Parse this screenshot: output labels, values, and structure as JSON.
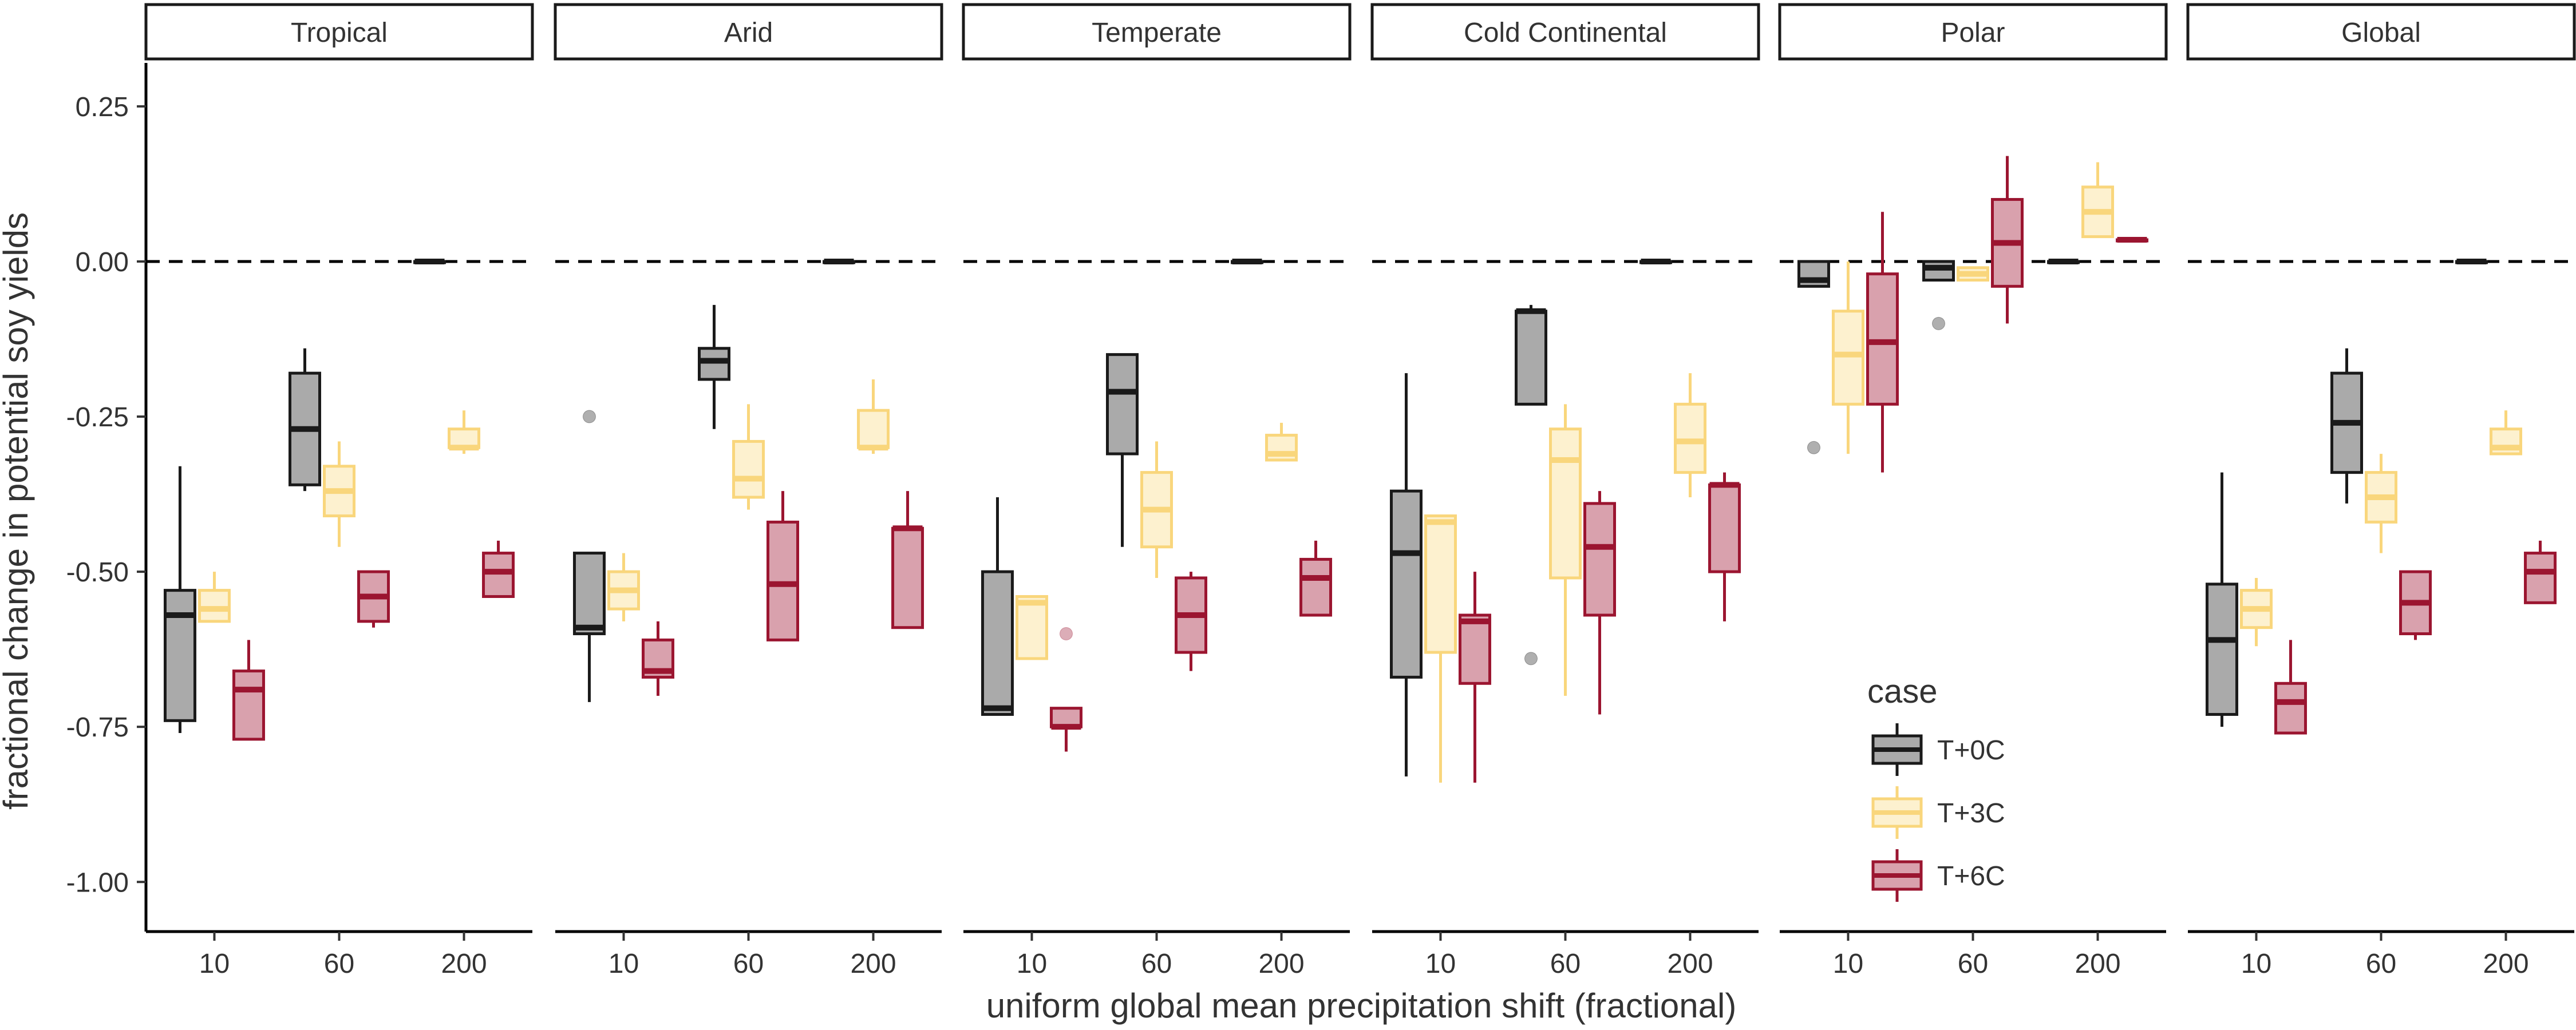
{
  "chart_data": {
    "type": "boxplot",
    "facets": [
      "Tropical",
      "Arid",
      "Temperate",
      "Cold Continental",
      "Polar",
      "Global"
    ],
    "categories": [
      "10",
      "60",
      "200"
    ],
    "xlabel": "uniform global mean precipitation shift (fractional)",
    "ylabel": "fractional change in potential soy yields",
    "ylim": [
      -1.08,
      0.32
    ],
    "yticks": [
      0.25,
      0,
      -0.25,
      -0.5,
      -0.75,
      -1
    ],
    "ytick_labels": [
      "0.25",
      "0.00",
      "-0.25",
      "-0.50",
      "-0.75",
      "-1.00"
    ],
    "reference_line": 0,
    "legend": {
      "title": "case",
      "position": "inside-bottom-right",
      "entries": [
        "T+0C",
        "T+3C",
        "T+6C"
      ]
    },
    "series": [
      {
        "name": "T+0C",
        "stroke": "#1a1a1a",
        "fill": "#aaaaaa",
        "fill_opacity": 1.0
      },
      {
        "name": "T+3C",
        "stroke": "#f9d67c",
        "fill": "#fdf1cf",
        "fill_opacity": 1.0
      },
      {
        "name": "T+6C",
        "stroke": "#9b1530",
        "fill": "#d9a1ad",
        "fill_opacity": 1.0
      }
    ],
    "boxes": [
      {
        "facet": "Tropical",
        "category": "10",
        "series": "T+0C",
        "min": -0.76,
        "q1": -0.74,
        "median": -0.57,
        "q3": -0.53,
        "max": -0.33,
        "outliers": []
      },
      {
        "facet": "Tropical",
        "category": "10",
        "series": "T+3C",
        "min": -0.58,
        "q1": -0.58,
        "median": -0.56,
        "q3": -0.53,
        "max": -0.5,
        "outliers": []
      },
      {
        "facet": "Tropical",
        "category": "10",
        "series": "T+6C",
        "min": -0.77,
        "q1": -0.77,
        "median": -0.69,
        "q3": -0.66,
        "max": -0.61,
        "outliers": []
      },
      {
        "facet": "Tropical",
        "category": "60",
        "series": "T+0C",
        "min": -0.37,
        "q1": -0.36,
        "median": -0.27,
        "q3": -0.18,
        "max": -0.14,
        "outliers": []
      },
      {
        "facet": "Tropical",
        "category": "60",
        "series": "T+3C",
        "min": -0.46,
        "q1": -0.41,
        "median": -0.37,
        "q3": -0.33,
        "max": -0.29,
        "outliers": []
      },
      {
        "facet": "Tropical",
        "category": "60",
        "series": "T+6C",
        "min": -0.59,
        "q1": -0.58,
        "median": -0.54,
        "q3": -0.5,
        "max": -0.5,
        "outliers": []
      },
      {
        "facet": "Tropical",
        "category": "200",
        "series": "T+0C",
        "min": 0,
        "q1": 0,
        "median": 0,
        "q3": 0,
        "max": 0,
        "outliers": []
      },
      {
        "facet": "Tropical",
        "category": "200",
        "series": "T+3C",
        "min": -0.31,
        "q1": -0.3,
        "median": -0.3,
        "q3": -0.27,
        "max": -0.24,
        "outliers": []
      },
      {
        "facet": "Tropical",
        "category": "200",
        "series": "T+6C",
        "min": -0.54,
        "q1": -0.54,
        "median": -0.5,
        "q3": -0.47,
        "max": -0.45,
        "outliers": []
      },
      {
        "facet": "Arid",
        "category": "10",
        "series": "T+0C",
        "min": -0.71,
        "q1": -0.6,
        "median": -0.59,
        "q3": -0.47,
        "max": -0.47,
        "outliers": [
          -0.25
        ]
      },
      {
        "facet": "Arid",
        "category": "10",
        "series": "T+3C",
        "min": -0.58,
        "q1": -0.56,
        "median": -0.53,
        "q3": -0.5,
        "max": -0.47,
        "outliers": []
      },
      {
        "facet": "Arid",
        "category": "10",
        "series": "T+6C",
        "min": -0.7,
        "q1": -0.67,
        "median": -0.66,
        "q3": -0.61,
        "max": -0.58,
        "outliers": []
      },
      {
        "facet": "Arid",
        "category": "60",
        "series": "T+0C",
        "min": -0.27,
        "q1": -0.19,
        "median": -0.16,
        "q3": -0.14,
        "max": -0.07,
        "outliers": []
      },
      {
        "facet": "Arid",
        "category": "60",
        "series": "T+3C",
        "min": -0.4,
        "q1": -0.38,
        "median": -0.35,
        "q3": -0.29,
        "max": -0.23,
        "outliers": []
      },
      {
        "facet": "Arid",
        "category": "60",
        "series": "T+6C",
        "min": -0.61,
        "q1": -0.61,
        "median": -0.52,
        "q3": -0.42,
        "max": -0.37,
        "outliers": []
      },
      {
        "facet": "Arid",
        "category": "200",
        "series": "T+0C",
        "min": 0,
        "q1": 0,
        "median": 0,
        "q3": 0,
        "max": 0,
        "outliers": []
      },
      {
        "facet": "Arid",
        "category": "200",
        "series": "T+3C",
        "min": -0.31,
        "q1": -0.3,
        "median": -0.3,
        "q3": -0.24,
        "max": -0.19,
        "outliers": []
      },
      {
        "facet": "Arid",
        "category": "200",
        "series": "T+6C",
        "min": -0.59,
        "q1": -0.59,
        "median": -0.43,
        "q3": -0.43,
        "max": -0.37,
        "outliers": []
      },
      {
        "facet": "Temperate",
        "category": "10",
        "series": "T+0C",
        "min": -0.73,
        "q1": -0.73,
        "median": -0.72,
        "q3": -0.5,
        "max": -0.38,
        "outliers": []
      },
      {
        "facet": "Temperate",
        "category": "10",
        "series": "T+3C",
        "min": -0.64,
        "q1": -0.64,
        "median": -0.55,
        "q3": -0.54,
        "max": -0.54,
        "outliers": []
      },
      {
        "facet": "Temperate",
        "category": "10",
        "series": "T+6C",
        "min": -0.79,
        "q1": -0.75,
        "median": -0.75,
        "q3": -0.72,
        "max": -0.72,
        "outliers": [
          -0.6
        ]
      },
      {
        "facet": "Temperate",
        "category": "60",
        "series": "T+0C",
        "min": -0.46,
        "q1": -0.31,
        "median": -0.21,
        "q3": -0.15,
        "max": -0.15,
        "outliers": []
      },
      {
        "facet": "Temperate",
        "category": "60",
        "series": "T+3C",
        "min": -0.51,
        "q1": -0.46,
        "median": -0.4,
        "q3": -0.34,
        "max": -0.29,
        "outliers": []
      },
      {
        "facet": "Temperate",
        "category": "60",
        "series": "T+6C",
        "min": -0.66,
        "q1": -0.63,
        "median": -0.57,
        "q3": -0.51,
        "max": -0.5,
        "outliers": []
      },
      {
        "facet": "Temperate",
        "category": "200",
        "series": "T+0C",
        "min": 0,
        "q1": 0,
        "median": 0,
        "q3": 0,
        "max": 0,
        "outliers": []
      },
      {
        "facet": "Temperate",
        "category": "200",
        "series": "T+3C",
        "min": -0.32,
        "q1": -0.32,
        "median": -0.31,
        "q3": -0.28,
        "max": -0.26,
        "outliers": []
      },
      {
        "facet": "Temperate",
        "category": "200",
        "series": "T+6C",
        "min": -0.57,
        "q1": -0.57,
        "median": -0.51,
        "q3": -0.48,
        "max": -0.45,
        "outliers": []
      },
      {
        "facet": "Cold Continental",
        "category": "10",
        "series": "T+0C",
        "min": -0.83,
        "q1": -0.67,
        "median": -0.47,
        "q3": -0.37,
        "max": -0.18,
        "outliers": []
      },
      {
        "facet": "Cold Continental",
        "category": "10",
        "series": "T+3C",
        "min": -0.84,
        "q1": -0.63,
        "median": -0.42,
        "q3": -0.41,
        "max": -0.41,
        "outliers": []
      },
      {
        "facet": "Cold Continental",
        "category": "10",
        "series": "T+6C",
        "min": -0.84,
        "q1": -0.68,
        "median": -0.58,
        "q3": -0.57,
        "max": -0.5,
        "outliers": []
      },
      {
        "facet": "Cold Continental",
        "category": "60",
        "series": "T+0C",
        "min": -0.23,
        "q1": -0.23,
        "median": -0.08,
        "q3": -0.08,
        "max": -0.07,
        "outliers": [
          -0.64
        ]
      },
      {
        "facet": "Cold Continental",
        "category": "60",
        "series": "T+3C",
        "min": -0.7,
        "q1": -0.51,
        "median": -0.32,
        "q3": -0.27,
        "max": -0.23,
        "outliers": []
      },
      {
        "facet": "Cold Continental",
        "category": "60",
        "series": "T+6C",
        "min": -0.73,
        "q1": -0.57,
        "median": -0.46,
        "q3": -0.39,
        "max": -0.37,
        "outliers": []
      },
      {
        "facet": "Cold Continental",
        "category": "200",
        "series": "T+0C",
        "min": 0,
        "q1": 0,
        "median": 0,
        "q3": 0,
        "max": 0,
        "outliers": []
      },
      {
        "facet": "Cold Continental",
        "category": "200",
        "series": "T+3C",
        "min": -0.38,
        "q1": -0.34,
        "median": -0.29,
        "q3": -0.23,
        "max": -0.18,
        "outliers": []
      },
      {
        "facet": "Cold Continental",
        "category": "200",
        "series": "T+6C",
        "min": -0.58,
        "q1": -0.5,
        "median": -0.36,
        "q3": -0.36,
        "max": -0.34,
        "outliers": []
      },
      {
        "facet": "Polar",
        "category": "10",
        "series": "T+0C",
        "min": -0.04,
        "q1": -0.04,
        "median": -0.03,
        "q3": 0,
        "max": 0,
        "outliers": [
          -0.3
        ]
      },
      {
        "facet": "Polar",
        "category": "10",
        "series": "T+3C",
        "min": -0.31,
        "q1": -0.23,
        "median": -0.15,
        "q3": -0.08,
        "max": 0,
        "outliers": []
      },
      {
        "facet": "Polar",
        "category": "10",
        "series": "T+6C",
        "min": -0.34,
        "q1": -0.23,
        "median": -0.13,
        "q3": -0.02,
        "max": 0.08,
        "outliers": []
      },
      {
        "facet": "Polar",
        "category": "60",
        "series": "T+0C",
        "min": -0.03,
        "q1": -0.03,
        "median": -0.01,
        "q3": 0,
        "max": 0,
        "outliers": [
          -0.1
        ]
      },
      {
        "facet": "Polar",
        "category": "60",
        "series": "T+3C",
        "min": -0.03,
        "q1": -0.03,
        "median": -0.02,
        "q3": -0.01,
        "max": -0.01,
        "outliers": []
      },
      {
        "facet": "Polar",
        "category": "60",
        "series": "T+6C",
        "min": -0.1,
        "q1": -0.04,
        "median": 0.03,
        "q3": 0.1,
        "max": 0.17,
        "outliers": []
      },
      {
        "facet": "Polar",
        "category": "200",
        "series": "T+0C",
        "min": 0,
        "q1": 0,
        "median": 0,
        "q3": 0,
        "max": 0,
        "outliers": []
      },
      {
        "facet": "Polar",
        "category": "200",
        "series": "T+3C",
        "min": 0.04,
        "q1": 0.04,
        "median": 0.08,
        "q3": 0.12,
        "max": 0.16,
        "outliers": []
      },
      {
        "facet": "Polar",
        "category": "200",
        "series": "T+6C",
        "min": 0.035,
        "q1": 0.035,
        "median": 0.035,
        "q3": 0.035,
        "max": 0.035,
        "outliers": []
      },
      {
        "facet": "Global",
        "category": "10",
        "series": "T+0C",
        "min": -0.75,
        "q1": -0.73,
        "median": -0.61,
        "q3": -0.52,
        "max": -0.34,
        "outliers": []
      },
      {
        "facet": "Global",
        "category": "10",
        "series": "T+3C",
        "min": -0.62,
        "q1": -0.59,
        "median": -0.56,
        "q3": -0.53,
        "max": -0.51,
        "outliers": []
      },
      {
        "facet": "Global",
        "category": "10",
        "series": "T+6C",
        "min": -0.76,
        "q1": -0.76,
        "median": -0.71,
        "q3": -0.68,
        "max": -0.61,
        "outliers": []
      },
      {
        "facet": "Global",
        "category": "60",
        "series": "T+0C",
        "min": -0.39,
        "q1": -0.34,
        "median": -0.26,
        "q3": -0.18,
        "max": -0.14,
        "outliers": []
      },
      {
        "facet": "Global",
        "category": "60",
        "series": "T+3C",
        "min": -0.47,
        "q1": -0.42,
        "median": -0.38,
        "q3": -0.34,
        "max": -0.31,
        "outliers": []
      },
      {
        "facet": "Global",
        "category": "60",
        "series": "T+6C",
        "min": -0.61,
        "q1": -0.6,
        "median": -0.55,
        "q3": -0.5,
        "max": -0.5,
        "outliers": []
      },
      {
        "facet": "Global",
        "category": "200",
        "series": "T+0C",
        "min": 0,
        "q1": 0,
        "median": 0,
        "q3": 0,
        "max": 0,
        "outliers": []
      },
      {
        "facet": "Global",
        "category": "200",
        "series": "T+3C",
        "min": -0.31,
        "q1": -0.31,
        "median": -0.3,
        "q3": -0.27,
        "max": -0.24,
        "outliers": []
      },
      {
        "facet": "Global",
        "category": "200",
        "series": "T+6C",
        "min": -0.55,
        "q1": -0.55,
        "median": -0.5,
        "q3": -0.47,
        "max": -0.45,
        "outliers": []
      }
    ]
  }
}
